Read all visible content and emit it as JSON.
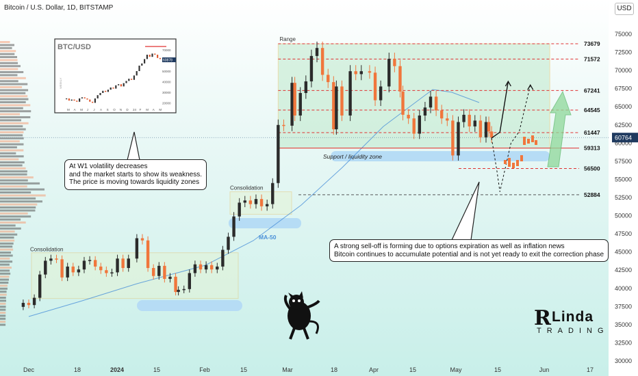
{
  "header": {
    "title": "Bitcoin / U.S. Dollar, 1D, BITSTAMP",
    "currency_button": "USD"
  },
  "callouts": {
    "left": [
      "At W1 volatility decreases",
      "and the market starts to show its weakness.",
      "The price is moving towards liquidity zones"
    ],
    "right": [
      "A strong sell-off is forming due to options expiration as well as inflation news",
      "Bitcoin continues to accumulate potential and is not yet ready to exit the correction phase"
    ]
  },
  "labels": {
    "range": "Range",
    "support_zone": "Support / liquidity zone",
    "consolidation_mid": "Consolidation",
    "consolidation_left": "Consolidation",
    "ma50": "MA-50"
  },
  "inset": {
    "title": "BTC/USD",
    "side_label": "WEEKLY",
    "y_ticks": [
      "70000",
      "60000",
      "50000",
      "40000",
      "30000",
      "20000"
    ],
    "price_tag": "60878",
    "months": [
      "M",
      "A",
      "M",
      "J",
      "J",
      "A",
      "S",
      "O",
      "N",
      "D",
      "24",
      "F",
      "M",
      "A",
      "M"
    ]
  },
  "logo": {
    "mark": "R",
    "line1": "Linda",
    "line2": "TRADING"
  },
  "colors": {
    "up": "#2b2b2b",
    "down": "#f0763c",
    "range_fill": "#bfe9cc",
    "support_zone": "#b6dcf5",
    "level_red": "#e03030",
    "ma": "#4a90d8",
    "price_tag": "#1f3a5f"
  },
  "chart_data": {
    "type": "candlestick",
    "symbol": "Bitcoin / U.S. Dollar",
    "interval": "1D",
    "exchange": "BITSTAMP",
    "y_range": [
      30000,
      77000
    ],
    "y_ticks": [
      30000,
      32500,
      35000,
      37500,
      40000,
      42500,
      45000,
      47500,
      50000,
      52500,
      55000,
      57500,
      60000,
      62500,
      65000,
      67500,
      70000,
      72500,
      75000
    ],
    "x_ticks": [
      "Dec",
      "18",
      "2024",
      "15",
      "Feb",
      "15",
      "Mar",
      "18",
      "Apr",
      "15",
      "May",
      "15",
      "Jun",
      "17"
    ],
    "current_price": 60764,
    "levels": [
      {
        "value": 73679,
        "label": "73679",
        "style": "dashed"
      },
      {
        "value": 71572,
        "label": "71572",
        "style": "dashed"
      },
      {
        "value": 67241,
        "label": "67241",
        "style": "dashed"
      },
      {
        "value": 64545,
        "label": "64545",
        "style": "dashed"
      },
      {
        "value": 61447,
        "label": "61447",
        "style": "dashed"
      },
      {
        "value": 59313,
        "label": "59313",
        "style": "solid"
      },
      {
        "value": 56500,
        "label": "56500",
        "style": "dashed"
      },
      {
        "value": 52884,
        "label": "52884",
        "style": "dashed"
      }
    ],
    "range_box": {
      "x_from": "2024-02-28",
      "x_to": "2024-06-05",
      "y_from": 59313,
      "y_to": 73679
    },
    "support_zone": {
      "x_from": "2024-03-18",
      "x_to": "2024-06-05",
      "y_from": 58200,
      "y_to": 59500
    },
    "closes": [
      [
        "2023-11-26",
        37450
      ],
      [
        "2023-11-28",
        38000
      ],
      [
        "2023-11-30",
        37700
      ],
      [
        "2023-12-02",
        38700
      ],
      [
        "2023-12-04",
        41900
      ],
      [
        "2023-12-06",
        43800
      ],
      [
        "2023-12-08",
        44100
      ],
      [
        "2023-12-10",
        44000
      ],
      [
        "2023-12-12",
        41500
      ],
      [
        "2023-12-14",
        43000
      ],
      [
        "2023-12-16",
        42200
      ],
      [
        "2023-12-18",
        42600
      ],
      [
        "2023-12-20",
        43800
      ],
      [
        "2023-12-22",
        43900
      ],
      [
        "2023-12-24",
        43000
      ],
      [
        "2023-12-26",
        42500
      ],
      [
        "2023-12-28",
        42100
      ],
      [
        "2023-12-30",
        42200
      ],
      [
        "2024-01-01",
        44100
      ],
      [
        "2024-01-03",
        42800
      ],
      [
        "2024-01-05",
        44100
      ],
      [
        "2024-01-08",
        46900
      ],
      [
        "2024-01-10",
        46600
      ],
      [
        "2024-01-12",
        42800
      ],
      [
        "2024-01-14",
        41700
      ],
      [
        "2024-01-16",
        43100
      ],
      [
        "2024-01-18",
        41300
      ],
      [
        "2024-01-20",
        41600
      ],
      [
        "2024-01-22",
        39500
      ],
      [
        "2024-01-23",
        39800
      ],
      [
        "2024-01-25",
        39900
      ],
      [
        "2024-01-27",
        42100
      ],
      [
        "2024-01-29",
        43300
      ],
      [
        "2024-01-31",
        42600
      ],
      [
        "2024-02-02",
        43200
      ],
      [
        "2024-02-04",
        42600
      ],
      [
        "2024-02-06",
        43000
      ],
      [
        "2024-02-08",
        45300
      ],
      [
        "2024-02-10",
        47100
      ],
      [
        "2024-02-12",
        49900
      ],
      [
        "2024-02-14",
        51800
      ],
      [
        "2024-02-16",
        52100
      ],
      [
        "2024-02-18",
        51600
      ],
      [
        "2024-02-20",
        52300
      ],
      [
        "2024-02-22",
        51300
      ],
      [
        "2024-02-24",
        51600
      ],
      [
        "2024-02-26",
        54500
      ],
      [
        "2024-02-28",
        62500
      ],
      [
        "2024-03-01",
        62400
      ],
      [
        "2024-03-04",
        68300
      ],
      [
        "2024-03-05",
        63800
      ],
      [
        "2024-03-07",
        66900
      ],
      [
        "2024-03-09",
        68500
      ],
      [
        "2024-03-11",
        72000
      ],
      [
        "2024-03-13",
        73100
      ],
      [
        "2024-03-15",
        69400
      ],
      [
        "2024-03-17",
        68400
      ],
      [
        "2024-03-19",
        61900
      ],
      [
        "2024-03-20",
        67800
      ],
      [
        "2024-03-22",
        63800
      ],
      [
        "2024-03-25",
        69900
      ],
      [
        "2024-03-27",
        69500
      ],
      [
        "2024-03-29",
        69900
      ],
      [
        "2024-04-01",
        69700
      ],
      [
        "2024-04-03",
        65900
      ],
      [
        "2024-04-05",
        67800
      ],
      [
        "2024-04-08",
        71600
      ],
      [
        "2024-04-10",
        70600
      ],
      [
        "2024-04-12",
        67100
      ],
      [
        "2024-04-13",
        63900
      ],
      [
        "2024-04-15",
        63400
      ],
      [
        "2024-04-17",
        61300
      ],
      [
        "2024-04-19",
        63800
      ],
      [
        "2024-04-21",
        64900
      ],
      [
        "2024-04-23",
        66400
      ],
      [
        "2024-04-25",
        64500
      ],
      [
        "2024-04-27",
        63400
      ],
      [
        "2024-04-29",
        63100
      ],
      [
        "2024-05-01",
        58300
      ],
      [
        "2024-05-03",
        62900
      ],
      [
        "2024-05-05",
        63900
      ],
      [
        "2024-05-07",
        62300
      ],
      [
        "2024-05-09",
        63100
      ],
      [
        "2024-05-11",
        60800
      ],
      [
        "2024-05-13",
        62900
      ],
      [
        "2024-05-14",
        61600
      ],
      [
        "2024-05-15",
        60764
      ]
    ],
    "projections": [
      {
        "name": "scenario-up",
        "points": [
          [
            "2024-05-15",
            60700
          ],
          [
            "2024-05-18",
            61500
          ],
          [
            "2024-05-21",
            68500
          ]
        ]
      },
      {
        "name": "scenario-down",
        "points": [
          [
            "2024-05-15",
            60700
          ],
          [
            "2024-05-17",
            56000
          ],
          [
            "2024-05-18",
            53300
          ],
          [
            "2024-05-22",
            60000
          ],
          [
            "2024-05-25",
            61600
          ],
          [
            "2024-05-29",
            68000
          ]
        ]
      }
    ],
    "annotation_price": "60764"
  }
}
